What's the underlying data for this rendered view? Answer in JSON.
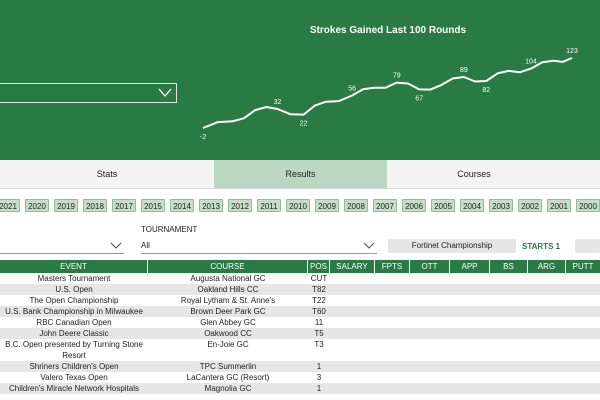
{
  "hero": {
    "chart_title": "Strokes Gained Last 100 Rounds",
    "dropdown_value": ""
  },
  "chart_data": {
    "type": "line",
    "title": "Strokes Gained Last 100 Rounds",
    "xlabel": "",
    "ylabel": "",
    "x": [
      0,
      8,
      14,
      20,
      27,
      33,
      40,
      46,
      52,
      58,
      64,
      70,
      76,
      82,
      88,
      94,
      99
    ],
    "y": [
      -2,
      10,
      30,
      32,
      22,
      45,
      56,
      70,
      79,
      67,
      75,
      89,
      82,
      100,
      104,
      118,
      123
    ],
    "labels": [
      {
        "i": 0,
        "text": "-2"
      },
      {
        "i": 3,
        "text": "32"
      },
      {
        "i": 4,
        "text": "22"
      },
      {
        "i": 6,
        "text": "56"
      },
      {
        "i": 8,
        "text": "79"
      },
      {
        "i": 9,
        "text": "67"
      },
      {
        "i": 11,
        "text": "89"
      },
      {
        "i": 12,
        "text": "82"
      },
      {
        "i": 14,
        "text": "104"
      },
      {
        "i": 16,
        "text": "123"
      }
    ],
    "xlim": [
      0,
      99
    ],
    "ylim": [
      -10,
      130
    ],
    "grid": false,
    "line_color": "#ffffff"
  },
  "tabs": [
    {
      "label": "Stats",
      "active": false
    },
    {
      "label": "Results",
      "active": true
    },
    {
      "label": "Courses",
      "active": false
    }
  ],
  "years": [
    "2021",
    "2020",
    "2019",
    "2018",
    "2017",
    "2015",
    "2014",
    "2013",
    "2012",
    "2011",
    "2010",
    "2009",
    "2008",
    "2007",
    "2006",
    "2005",
    "2004",
    "2003",
    "2002",
    "2001",
    "2000"
  ],
  "filters": {
    "tournament_label": "TOURNAMENT",
    "tournament_value": "All",
    "selected_event": "Fortinet Championship",
    "starts_label": "STARTS",
    "starts_value": "1"
  },
  "table": {
    "headers": [
      "EVENT",
      "COURSE",
      "POS",
      "SALARY",
      "FPTS",
      "OTT",
      "APP",
      "BS",
      "ARG",
      "PUTT"
    ],
    "rows": [
      {
        "event": "Masters Tournament",
        "course": "Augusta National GC",
        "pos": "CUT"
      },
      {
        "event": "U.S. Open",
        "course": "Oakland Hills CC",
        "pos": "T82"
      },
      {
        "event": "The Open Championship",
        "course": "Royal Lytham & St. Anne's",
        "pos": "T22"
      },
      {
        "event": "U.S. Bank Championship in Milwaukee",
        "course": "Brown Deer Park GC",
        "pos": "T60"
      },
      {
        "event": "RBC Canadian Open",
        "course": "Glen Abbey GC",
        "pos": "11"
      },
      {
        "event": "John Deere Classic",
        "course": "Oakwood CC",
        "pos": "T5"
      },
      {
        "event": "B.C. Open presented by Turning Stone Resort",
        "course": "En-Joie GC",
        "pos": "T3"
      },
      {
        "event": "Shriners Children's Open",
        "course": "TPC Summerlin",
        "pos": "1"
      },
      {
        "event": "Valero Texas Open",
        "course": "LaCantera GC (Resort)",
        "pos": "3"
      },
      {
        "event": "Children's Miracle Network Hospitals",
        "course": "Magnolia GC",
        "pos": "1"
      }
    ]
  },
  "colors": {
    "brand_green": "#2a7a44",
    "active_tab": "#bcd8c3",
    "year_chip": "#c4dfc8"
  }
}
